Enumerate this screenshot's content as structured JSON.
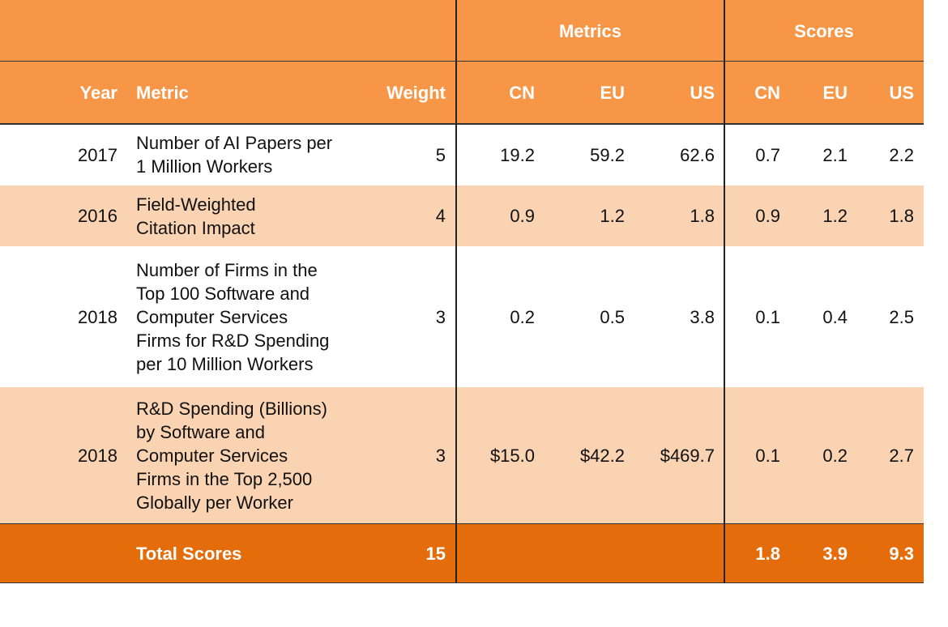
{
  "table": {
    "group_headers": [
      "Metrics",
      "Scores"
    ],
    "columns": [
      "Year",
      "Metric",
      "Weight",
      "CN",
      "EU",
      "US",
      "CN",
      "EU",
      "US"
    ],
    "rows": [
      [
        "2017",
        [
          "Number of AI Papers per",
          "1 Million Workers"
        ],
        "5",
        "19.2",
        "59.2",
        "62.6",
        "0.7",
        "2.1",
        "2.2"
      ],
      [
        "2016",
        [
          "Field-Weighted",
          "Citation Impact"
        ],
        "4",
        "0.9",
        "1.2",
        "1.8",
        "0.9",
        "1.2",
        "1.8"
      ],
      [
        "2018",
        [
          "Number of Firms in the",
          "Top 100 Software and",
          "Computer Services",
          "Firms for R&D Spending",
          "per 10 Million Workers"
        ],
        "3",
        "0.2",
        "0.5",
        "3.8",
        "0.1",
        "0.4",
        "2.5"
      ],
      [
        "2018",
        [
          "R&D Spending (Billions)",
          "by Software and",
          "Computer Services",
          "Firms in the Top 2,500",
          "Globally per Worker"
        ],
        "3",
        "$15.0",
        "$42.2",
        "$469.7",
        "0.1",
        "0.2",
        "2.7"
      ]
    ],
    "total": {
      "label": "Total Scores",
      "weight": "15",
      "scores": [
        "1.8",
        "3.9",
        "9.3"
      ]
    }
  }
}
